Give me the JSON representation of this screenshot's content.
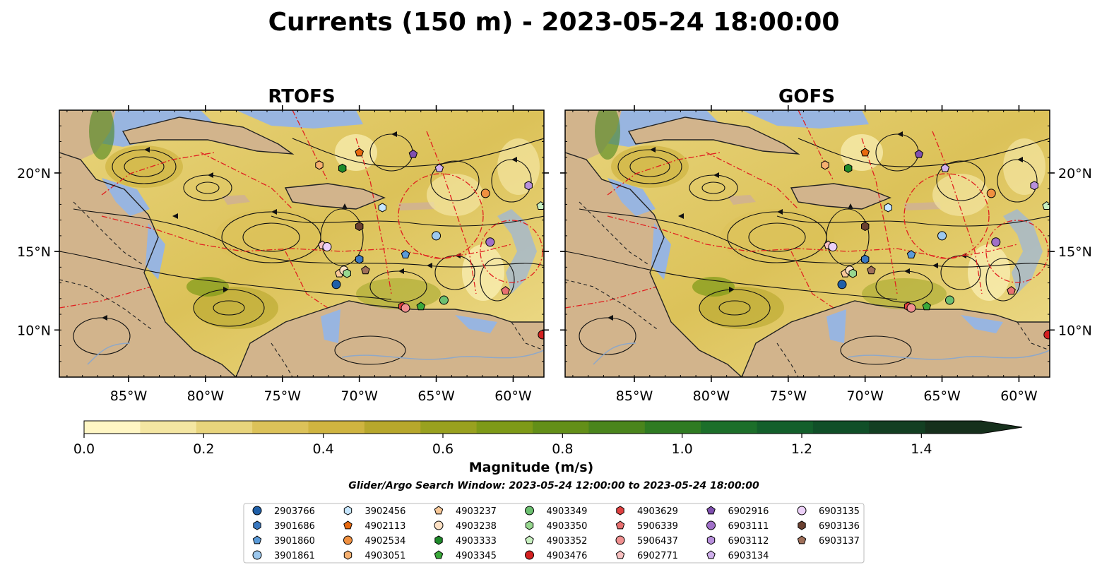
{
  "title": "Currents (150 m) - 2023-05-24 18:00:00",
  "panels": [
    {
      "title": "RTOFS"
    },
    {
      "title": "GOFS"
    }
  ],
  "map": {
    "lon_range": [
      -89.5,
      -58
    ],
    "lat_range": [
      7,
      24
    ],
    "lon_ticks": [
      "85°W",
      "80°W",
      "75°W",
      "70°W",
      "65°W",
      "60°W"
    ],
    "lat_ticks": [
      "20°N",
      "15°N",
      "10°N"
    ],
    "colors": {
      "ocean": "#98b5e0",
      "land": "#d2b48c",
      "current": "#d8c66a",
      "contour": "#e02020"
    }
  },
  "colorbar": {
    "label": "Magnitude (m/s)",
    "ticks": [
      "0.0",
      "0.2",
      "0.4",
      "0.6",
      "0.8",
      "1.0",
      "1.2",
      "1.4"
    ],
    "range": [
      0,
      1.5
    ],
    "extend": "max",
    "colors": [
      "#fff6c4",
      "#f4e6a2",
      "#e8d47c",
      "#dcc259",
      "#cfb440",
      "#b7a72c",
      "#99a11f",
      "#7e9a17",
      "#638f18",
      "#4a851c",
      "#2f7b22",
      "#1c6f2a",
      "#135f2b",
      "#104f28",
      "#133f22",
      "#16301c"
    ]
  },
  "search_window": "Glider/Argo Search Window: 2023-05-24 12:00:00 to 2023-05-24 18:00:00",
  "legend": [
    {
      "id": "2903766",
      "marker": "circle",
      "color": "#1f5fa8"
    },
    {
      "id": "3901686",
      "marker": "hexagon",
      "color": "#3a78c0"
    },
    {
      "id": "3901860",
      "marker": "pentagon",
      "color": "#5a9ad8"
    },
    {
      "id": "3901861",
      "marker": "circle",
      "color": "#9cc8ee"
    },
    {
      "id": "3902456",
      "marker": "hexagon",
      "color": "#c6e6ff"
    },
    {
      "id": "4902113",
      "marker": "pentagon",
      "color": "#e86a10"
    },
    {
      "id": "4902534",
      "marker": "circle",
      "color": "#f09040"
    },
    {
      "id": "4903051",
      "marker": "hexagon",
      "color": "#f6b070"
    },
    {
      "id": "4903237",
      "marker": "pentagon",
      "color": "#f8c898"
    },
    {
      "id": "4903238",
      "marker": "circle",
      "color": "#fde0c4"
    },
    {
      "id": "4903333",
      "marker": "hexagon",
      "color": "#1e8a2a"
    },
    {
      "id": "4903345",
      "marker": "pentagon",
      "color": "#3aa83a"
    },
    {
      "id": "4903349",
      "marker": "circle",
      "color": "#6cc070"
    },
    {
      "id": "4903350",
      "marker": "hexagon",
      "color": "#98d890"
    },
    {
      "id": "4903352",
      "marker": "pentagon",
      "color": "#c8f0c0"
    },
    {
      "id": "4903476",
      "marker": "circle",
      "color": "#d42020"
    },
    {
      "id": "4903629",
      "marker": "hexagon",
      "color": "#e04040"
    },
    {
      "id": "5906339",
      "marker": "pentagon",
      "color": "#e87070"
    },
    {
      "id": "5906437",
      "marker": "circle",
      "color": "#f09090"
    },
    {
      "id": "6902771",
      "marker": "pentagon",
      "color": "#f8c0c0"
    },
    {
      "id": "6902916",
      "marker": "pentagon",
      "color": "#8050b0"
    },
    {
      "id": "6903111",
      "marker": "circle",
      "color": "#a070c8"
    },
    {
      "id": "6903112",
      "marker": "hexagon",
      "color": "#b890dc"
    },
    {
      "id": "6903134",
      "marker": "pentagon",
      "color": "#d0b0ec"
    },
    {
      "id": "6903135",
      "marker": "circle",
      "color": "#ecd0f8"
    },
    {
      "id": "6903136",
      "marker": "hexagon",
      "color": "#6a4030"
    },
    {
      "id": "6903137",
      "marker": "pentagon",
      "color": "#a0705a"
    }
  ],
  "floats": [
    {
      "id": "2903766",
      "lon": -71.5,
      "lat": 12.9
    },
    {
      "id": "3901686",
      "lon": -70.0,
      "lat": 14.5
    },
    {
      "id": "3901860",
      "lon": -67.0,
      "lat": 14.8
    },
    {
      "id": "3901861",
      "lon": -65.0,
      "lat": 16.0
    },
    {
      "id": "3902456",
      "lon": -68.5,
      "lat": 17.8
    },
    {
      "id": "4902113",
      "lon": -70.0,
      "lat": 21.3
    },
    {
      "id": "4902534",
      "lon": -61.8,
      "lat": 18.7
    },
    {
      "id": "4903051",
      "lon": -72.6,
      "lat": 20.5
    },
    {
      "id": "4903237",
      "lon": -71.3,
      "lat": 13.6
    },
    {
      "id": "4903238",
      "lon": -71.0,
      "lat": 13.8
    },
    {
      "id": "4903333",
      "lon": -71.1,
      "lat": 20.3
    },
    {
      "id": "4903345",
      "lon": -66.0,
      "lat": 11.5
    },
    {
      "id": "4903349",
      "lon": -64.5,
      "lat": 11.9
    },
    {
      "id": "4903350",
      "lon": -70.8,
      "lat": 13.6
    },
    {
      "id": "4903352",
      "lon": -58.2,
      "lat": 17.9
    },
    {
      "id": "4903476",
      "lon": -58.1,
      "lat": 9.7
    },
    {
      "id": "4903629",
      "lon": -67.2,
      "lat": 11.5
    },
    {
      "id": "5906339",
      "lon": -60.5,
      "lat": 12.5
    },
    {
      "id": "5906437",
      "lon": -67.0,
      "lat": 11.4
    },
    {
      "id": "6902771",
      "lon": -72.4,
      "lat": 15.4
    },
    {
      "id": "6902916",
      "lon": -66.5,
      "lat": 21.2
    },
    {
      "id": "6903111",
      "lon": -61.5,
      "lat": 15.6
    },
    {
      "id": "6903112",
      "lon": -59.0,
      "lat": 19.2
    },
    {
      "id": "6903134",
      "lon": -64.8,
      "lat": 20.3
    },
    {
      "id": "6903135",
      "lon": -72.1,
      "lat": 15.3
    },
    {
      "id": "6903136",
      "lon": -70.0,
      "lat": 16.6
    },
    {
      "id": "6903137",
      "lon": -69.6,
      "lat": 13.8
    }
  ]
}
